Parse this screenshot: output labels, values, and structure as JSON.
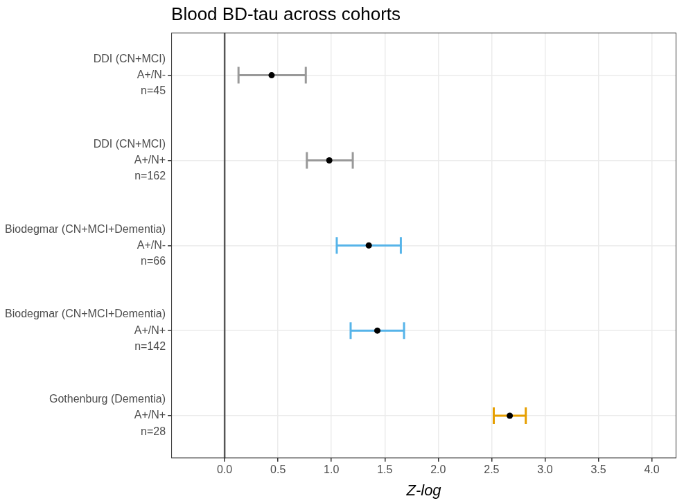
{
  "chart_data": {
    "type": "forest",
    "title": "Blood BD-tau across cohorts",
    "x_label": "Z-log",
    "orientation": "horizontal",
    "categories": [
      [
        "DDI (CN+MCI)",
        "A+/N-",
        "n=45"
      ],
      [
        "DDI (CN+MCI)",
        "A+/N+",
        "n=162"
      ],
      [
        "Biodegmar (CN+MCI+Dementia)",
        "A+/N-",
        "n=66"
      ],
      [
        "Biodegmar (CN+MCI+Dementia)",
        "A+/N+",
        "n=142"
      ],
      [
        "Gothenburg (Dementia)",
        "A+/N+",
        "n=28"
      ]
    ],
    "values": [
      0.44,
      0.98,
      1.35,
      1.43,
      2.67
    ],
    "error_low": [
      0.13,
      0.77,
      1.05,
      1.18,
      2.52
    ],
    "error_high": [
      0.76,
      1.2,
      1.65,
      1.68,
      2.82
    ],
    "colors": [
      "#999999",
      "#999999",
      "#56b4e9",
      "#56b4e9",
      "#e69f00"
    ],
    "xlim": [
      -0.5,
      4.23
    ],
    "xticks": [
      {
        "value": 0,
        "label": "0.0"
      },
      0.5,
      {
        "value": 1,
        "label": "1.0"
      },
      1.5,
      {
        "value": 2,
        "label": "2.0"
      },
      2.5,
      {
        "value": 3,
        "label": "3.0"
      },
      3.5,
      {
        "value": 4,
        "label": "4.0"
      }
    ],
    "reference_x": 0,
    "grid": true
  }
}
